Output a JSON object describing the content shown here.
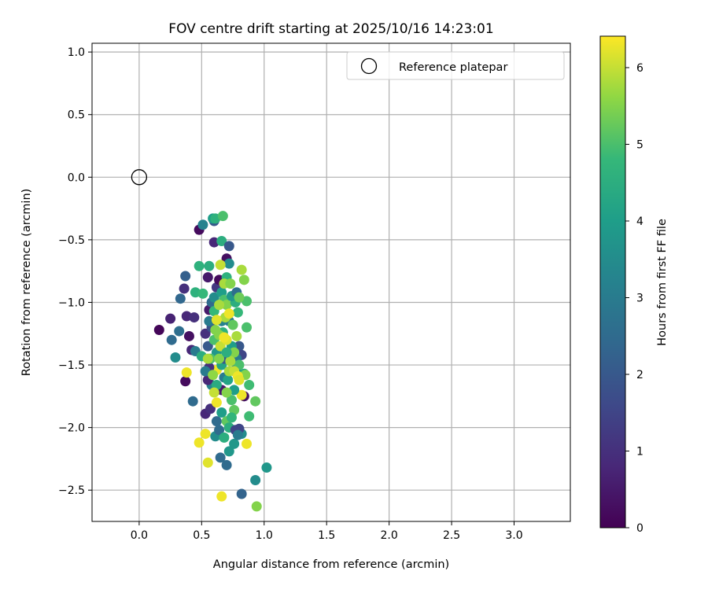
{
  "chart_data": {
    "type": "scatter",
    "title": "FOV centre drift starting at 2025/10/16 14:23:01",
    "xlabel": "Angular distance from reference (arcmin)",
    "ylabel": "Rotation from reference (arcmin)",
    "xlim": [
      -0.377,
      3.45
    ],
    "ylim": [
      -2.75,
      1.07
    ],
    "xticks": [
      "0.0",
      "0.5",
      "1.0",
      "1.5",
      "2.0",
      "2.5",
      "3.0"
    ],
    "yticks": [
      "1.0",
      "0.5",
      "0.0",
      "-0.5",
      "-1.0",
      "-1.5",
      "-2.0",
      "-2.5"
    ],
    "grid": true,
    "legend": {
      "placement": "top-right",
      "entries": [
        "Reference platepar"
      ]
    },
    "reference_point": {
      "x": 0.0,
      "y": 0.0
    },
    "colorbar": {
      "label": "Hours from first FF file",
      "range": [
        0,
        6.41
      ],
      "ticks": [
        "0",
        "1",
        "2",
        "3",
        "4",
        "5",
        "6"
      ],
      "colormap": "viridis"
    },
    "series": [
      {
        "name": "FOV centre",
        "columns": [
          "x",
          "y",
          "hours"
        ],
        "points": [
          [
            0.16,
            -1.22,
            0.1
          ],
          [
            0.25,
            -1.13,
            0.7
          ],
          [
            0.26,
            -1.3,
            2.5
          ],
          [
            0.29,
            -1.44,
            3.5
          ],
          [
            0.32,
            -1.23,
            2.6
          ],
          [
            0.33,
            -0.97,
            2.4
          ],
          [
            0.36,
            -0.89,
            1.0
          ],
          [
            0.37,
            -0.79,
            2.2
          ],
          [
            0.38,
            -1.11,
            0.8
          ],
          [
            0.37,
            -1.63,
            0.2
          ],
          [
            0.38,
            -1.56,
            6.3
          ],
          [
            0.4,
            -1.27,
            0.3
          ],
          [
            0.42,
            -1.38,
            0.8
          ],
          [
            0.43,
            -1.79,
            2.5
          ],
          [
            0.44,
            -1.12,
            1.0
          ],
          [
            0.45,
            -0.92,
            4.6
          ],
          [
            0.45,
            -1.39,
            3.0
          ],
          [
            0.48,
            -0.71,
            4.6
          ],
          [
            0.48,
            -2.12,
            6.3
          ],
          [
            0.5,
            -1.43,
            4.5
          ],
          [
            0.51,
            -0.93,
            4.8
          ],
          [
            0.48,
            -0.42,
            0.2
          ],
          [
            0.51,
            -0.38,
            3.2
          ],
          [
            0.53,
            -2.05,
            6.3
          ],
          [
            0.55,
            -2.28,
            6.2
          ],
          [
            0.53,
            -1.89,
            0.8
          ],
          [
            0.55,
            -0.8,
            0.5
          ],
          [
            0.56,
            -0.71,
            4.5
          ],
          [
            0.57,
            -1.85,
            1.0
          ],
          [
            0.6,
            -0.35,
            2.0
          ],
          [
            0.59,
            -0.33,
            4.0
          ],
          [
            0.61,
            -0.33,
            4.6
          ],
          [
            0.6,
            -0.52,
            0.8
          ],
          [
            0.62,
            -1.95,
            2.5
          ],
          [
            0.61,
            -2.07,
            3.5
          ],
          [
            0.65,
            -2.24,
            2.5
          ],
          [
            0.66,
            -2.55,
            6.3
          ],
          [
            0.67,
            -0.31,
            5.0
          ],
          [
            0.66,
            -0.51,
            4.5
          ],
          [
            0.7,
            -0.65,
            0.3
          ],
          [
            0.72,
            -0.55,
            2.0
          ],
          [
            0.72,
            -0.69,
            3.5
          ],
          [
            0.7,
            -2.3,
            2.5
          ],
          [
            0.72,
            -2.19,
            3.8
          ],
          [
            0.76,
            -2.13,
            3.8
          ],
          [
            0.82,
            -2.53,
            2.3
          ],
          [
            0.82,
            -0.74,
            5.8
          ],
          [
            0.84,
            -0.82,
            5.5
          ],
          [
            0.86,
            -0.99,
            5.0
          ],
          [
            0.86,
            -1.2,
            5.0
          ],
          [
            0.88,
            -1.66,
            4.9
          ],
          [
            0.88,
            -1.91,
            4.9
          ],
          [
            0.86,
            -2.13,
            6.3
          ],
          [
            0.93,
            -1.79,
            5.2
          ],
          [
            0.93,
            -2.42,
            3.5
          ],
          [
            0.94,
            -2.63,
            5.5
          ],
          [
            1.02,
            -2.32,
            3.8
          ],
          [
            0.82,
            -2.05,
            3.5
          ],
          [
            0.8,
            -2.01,
            1.5
          ],
          [
            0.84,
            -1.75,
            0.3
          ],
          [
            0.82,
            -1.74,
            6.3
          ],
          [
            0.76,
            -1.86,
            5.2
          ],
          [
            0.62,
            -1.8,
            6.3
          ],
          [
            0.58,
            -1.66,
            3.2
          ],
          [
            0.66,
            -1.7,
            0.5
          ],
          [
            0.62,
            -1.54,
            6.3
          ],
          [
            0.56,
            -1.52,
            1.0
          ],
          [
            0.55,
            -1.62,
            0.8
          ],
          [
            0.53,
            -1.55,
            3.0
          ],
          [
            0.55,
            -1.35,
            2.0
          ],
          [
            0.53,
            -1.25,
            1.0
          ],
          [
            0.56,
            -1.06,
            0.5
          ],
          [
            0.58,
            -1.0,
            2.5
          ],
          [
            0.6,
            -0.96,
            3.5
          ],
          [
            0.62,
            -0.88,
            1.2
          ],
          [
            0.64,
            -0.82,
            0.2
          ],
          [
            0.66,
            -0.92,
            4.0
          ],
          [
            0.68,
            -0.98,
            5.0
          ],
          [
            0.7,
            -1.02,
            5.5
          ],
          [
            0.72,
            -1.15,
            3.0
          ],
          [
            0.75,
            -1.18,
            5.2
          ],
          [
            0.77,
            -1.0,
            4.5
          ],
          [
            0.79,
            -1.08,
            4.8
          ],
          [
            0.8,
            -1.35,
            2.0
          ],
          [
            0.82,
            -1.42,
            1.5
          ],
          [
            0.84,
            -1.57,
            4.5
          ],
          [
            0.85,
            -1.58,
            5.5
          ],
          [
            0.78,
            -1.52,
            3.5
          ],
          [
            0.76,
            -1.7,
            4.0
          ],
          [
            0.74,
            -1.78,
            5.0
          ],
          [
            0.7,
            -1.72,
            5.5
          ],
          [
            0.68,
            -1.6,
            3.0
          ],
          [
            0.66,
            -1.5,
            4.2
          ],
          [
            0.62,
            -1.4,
            3.8
          ],
          [
            0.6,
            -1.3,
            5.0
          ],
          [
            0.58,
            -1.2,
            1.8
          ],
          [
            0.56,
            -1.15,
            3.0
          ],
          [
            0.57,
            -1.45,
            5.0
          ],
          [
            0.59,
            -1.58,
            5.6
          ],
          [
            0.62,
            -1.66,
            4.4
          ],
          [
            0.67,
            -1.24,
            4.6
          ],
          [
            0.74,
            -1.35,
            4.0
          ],
          [
            0.78,
            -1.45,
            3.0
          ],
          [
            0.8,
            -1.5,
            5.0
          ],
          [
            0.68,
            -1.45,
            2.0
          ],
          [
            0.66,
            -1.15,
            3.2
          ],
          [
            0.6,
            -1.07,
            4.8
          ],
          [
            0.7,
            -0.8,
            4.6
          ],
          [
            0.74,
            -0.95,
            3.8
          ],
          [
            0.78,
            -0.92,
            2.6
          ],
          [
            0.8,
            -0.96,
            5.3
          ],
          [
            0.71,
            -1.62,
            4.2
          ],
          [
            0.66,
            -1.88,
            4.0
          ],
          [
            0.7,
            -1.95,
            5.2
          ],
          [
            0.72,
            -2.0,
            4.5
          ],
          [
            0.77,
            -2.02,
            1.5
          ],
          [
            0.79,
            -2.06,
            3.0
          ],
          [
            0.74,
            -1.92,
            4.7
          ],
          [
            0.64,
            -2.02,
            2.5
          ],
          [
            0.68,
            -2.08,
            4.5
          ],
          [
            0.55,
            -1.45,
            5.8
          ],
          [
            0.64,
            -1.45,
            5.5
          ],
          [
            0.61,
            -1.22,
            5.5
          ],
          [
            0.64,
            -1.26,
            5.5
          ],
          [
            0.65,
            -1.35,
            6.0
          ],
          [
            0.7,
            -1.3,
            6.2
          ],
          [
            0.76,
            -1.4,
            5.5
          ],
          [
            0.72,
            -1.55,
            5.8
          ],
          [
            0.76,
            -1.55,
            6.0
          ],
          [
            0.73,
            -1.47,
            5.8
          ],
          [
            0.7,
            -1.4,
            4.5
          ],
          [
            0.64,
            -1.02,
            5.8
          ],
          [
            0.68,
            -0.85,
            5.8
          ],
          [
            0.69,
            -1.12,
            5.8
          ],
          [
            0.6,
            -1.72,
            6.0
          ],
          [
            0.78,
            -1.27,
            5.8
          ],
          [
            0.79,
            -1.59,
            6.3
          ],
          [
            0.8,
            -1.62,
            6.2
          ],
          [
            0.73,
            -0.85,
            5.5
          ],
          [
            0.65,
            -0.7,
            6.0
          ],
          [
            0.62,
            -1.14,
            6.2
          ],
          [
            0.68,
            -1.28,
            6.3
          ],
          [
            0.72,
            -1.09,
            6.3
          ]
        ]
      }
    ]
  }
}
